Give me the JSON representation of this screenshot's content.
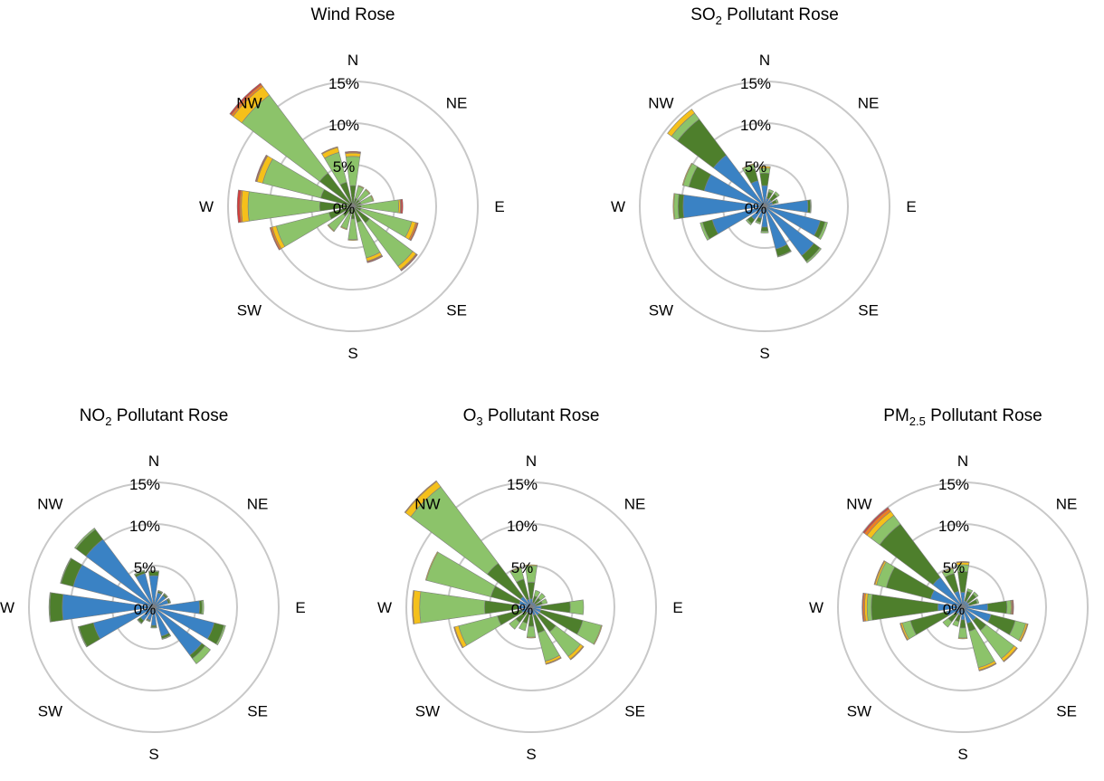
{
  "colors": {
    "ring": "#c8c8c8",
    "blue": "#3a82c4",
    "darkgreen": "#4e7f2c",
    "lightgreen": "#8cc36a",
    "yellow": "#f5c01a",
    "orange": "#ee7d24",
    "red": "#d43d3a",
    "border": "#7f7f7f"
  },
  "chart_data": [
    {
      "type": "polar-stacked-bar",
      "title": "Wind Rose",
      "title_main": "Wind Rose",
      "title_sub": "",
      "title_tail": "",
      "ring_labels": [
        "0%",
        "5%",
        "10%",
        "15%"
      ],
      "rmax": 15,
      "directions": [
        "N",
        "NE",
        "E",
        "SE",
        "S",
        "SW",
        "W",
        "NW"
      ],
      "sectors": 16,
      "series": [
        {
          "color": "#4e7f2c",
          "values": [
            2.5,
            1,
            1,
            1,
            1,
            1,
            2.5,
            2,
            1.5,
            1,
            1.5,
            3,
            4,
            4,
            5,
            3
          ]
        },
        {
          "color": "#8cc36a",
          "values": [
            3.5,
            1.5,
            1.5,
            1.5,
            4.5,
            6.3,
            6.5,
            4.4,
            2.5,
            1.8,
            2.2,
            6.5,
            8.6,
            7.2,
            11.7,
            3.7
          ]
        },
        {
          "color": "#f5c01a",
          "values": [
            0.4,
            0.1,
            0.1,
            0.1,
            0.2,
            0.5,
            0.5,
            0.4,
            0.1,
            0.1,
            0.1,
            0.5,
            0.8,
            0.7,
            1.3,
            0.6
          ]
        },
        {
          "color": "#ee7d24",
          "values": [
            0.1,
            0,
            0,
            0,
            0.1,
            0.2,
            0.1,
            0.1,
            0,
            0,
            0,
            0.2,
            0.2,
            0.1,
            0.3,
            0.1
          ]
        },
        {
          "color": "#d43d3a",
          "values": [
            0.1,
            0,
            0,
            0,
            0.2,
            0.1,
            0.1,
            0.1,
            0,
            0,
            0,
            0.1,
            0.3,
            0.1,
            0.2,
            0
          ]
        }
      ]
    },
    {
      "type": "polar-stacked-bar",
      "title": "SO2 Pollutant Rose",
      "title_main": "SO",
      "title_sub": "2",
      "title_tail": " Pollutant Rose",
      "ring_labels": [
        "0%",
        "5%",
        "10%",
        "15%"
      ],
      "rmax": 15,
      "directions": [
        "N",
        "NE",
        "E",
        "SE",
        "S",
        "SW",
        "W",
        "NW"
      ],
      "sectors": 16,
      "series": [
        {
          "color": "#3a82c4",
          "values": [
            2.5,
            1,
            1,
            1,
            5.2,
            6.9,
            7.4,
            5.3,
            2.5,
            1.5,
            2,
            6.5,
            9.8,
            7.5,
            7.7,
            3.2
          ]
        },
        {
          "color": "#4e7f2c",
          "values": [
            1.5,
            0.8,
            0.9,
            0.5,
            0.3,
            0.6,
            0.9,
            0.9,
            0.5,
            0.5,
            0.6,
            1.2,
            0.6,
            1.9,
            5.4,
            1.5
          ]
        },
        {
          "color": "#8cc36a",
          "values": [
            0.6,
            0.3,
            0.3,
            0.2,
            0.1,
            0.3,
            0.2,
            0.1,
            0.2,
            0.2,
            0.2,
            0.3,
            0.5,
            0.7,
            0.9,
            0.5
          ]
        },
        {
          "color": "#f5c01a",
          "values": [
            0.2,
            0,
            0,
            0,
            0,
            0,
            0,
            0,
            0,
            0,
            0,
            0,
            0.1,
            0.1,
            0.6,
            0.1
          ]
        }
      ]
    },
    {
      "type": "polar-stacked-bar",
      "title": "NO2 Pollutant Rose",
      "title_main": "NO",
      "title_sub": "2",
      "title_tail": " Pollutant Rose",
      "ring_labels": [
        "0%",
        "5%",
        "10%",
        "15%"
      ],
      "rmax": 15,
      "directions": [
        "N",
        "NE",
        "E",
        "SE",
        "S",
        "SW",
        "W",
        "NW"
      ],
      "sectors": 16,
      "series": [
        {
          "color": "#3a82c4",
          "values": [
            3.8,
            1.8,
            1.8,
            1.8,
            5.5,
            7.5,
            7.2,
            3.6,
            2.2,
            1.6,
            2,
            7.5,
            11,
            10,
            10.2,
            4.2
          ]
        },
        {
          "color": "#4e7f2c",
          "values": [
            0.5,
            0.2,
            0.2,
            0.2,
            0.3,
            1.2,
            0.5,
            0.3,
            0.2,
            0.1,
            0.4,
            1.8,
            1.5,
            1.5,
            1.5,
            0.3
          ]
        },
        {
          "color": "#8cc36a",
          "values": [
            0.1,
            0.1,
            0.1,
            0.1,
            0.2,
            0.2,
            0.8,
            0.1,
            0.1,
            0.1,
            0.1,
            0.1,
            0.1,
            0.1,
            0.2,
            0.1
          ]
        }
      ]
    },
    {
      "type": "polar-stacked-bar",
      "title": "O3 Pollutant Rose",
      "title_main": "O",
      "title_sub": "3",
      "title_tail": " Pollutant Rose",
      "ring_labels": [
        "0%",
        "5%",
        "10%",
        "15%"
      ],
      "rmax": 15,
      "directions": [
        "N",
        "NE",
        "E",
        "SE",
        "S",
        "SW",
        "W",
        "NW"
      ],
      "sectors": 16,
      "series": [
        {
          "color": "#3a82c4",
          "values": [
            1,
            0.6,
            0.6,
            0.6,
            1.2,
            1.2,
            1.2,
            1,
            0.8,
            0.8,
            0.8,
            1.2,
            1.6,
            1.5,
            1.6,
            1
          ]
        },
        {
          "color": "#4e7f2c",
          "values": [
            2,
            0.8,
            0.8,
            0.8,
            3.5,
            5.2,
            2.5,
            2.2,
            1.5,
            1.2,
            1.5,
            3,
            4,
            3.5,
            5,
            2.5
          ]
        },
        {
          "color": "#8cc36a",
          "values": [
            2,
            0.7,
            0.7,
            0.6,
            1.6,
            2.3,
            3.7,
            3.5,
            1.3,
            0.9,
            1,
            4.8,
            7.8,
            8,
            11.5,
            1.4
          ]
        },
        {
          "color": "#f5c01a",
          "values": [
            0.1,
            0,
            0,
            0,
            0,
            0.1,
            0.4,
            0.3,
            0.1,
            0,
            0,
            0.5,
            0.8,
            0.1,
            0.8,
            0.1
          ]
        },
        {
          "color": "#ee7d24",
          "values": [
            0,
            0,
            0,
            0,
            0,
            0,
            0.1,
            0.1,
            0,
            0,
            0,
            0.1,
            0.1,
            0,
            0.1,
            0
          ]
        }
      ]
    },
    {
      "type": "polar-stacked-bar",
      "title": "PM2.5 Pollutant Rose",
      "title_main": "PM",
      "title_sub": "2.5",
      "title_tail": " Pollutant Rose",
      "ring_labels": [
        "0%",
        "5%",
        "10%",
        "15%"
      ],
      "rmax": 15,
      "directions": [
        "N",
        "NE",
        "E",
        "SE",
        "S",
        "SW",
        "W",
        "NW"
      ],
      "sectors": 16,
      "series": [
        {
          "color": "#3a82c4",
          "values": [
            1.8,
            0.8,
            0.8,
            0.8,
            3,
            3.5,
            2,
            2,
            1.5,
            1,
            1,
            2,
            3,
            4,
            4.5,
            2
          ]
        },
        {
          "color": "#4e7f2c",
          "values": [
            2.5,
            1.2,
            1.2,
            1,
            2.3,
            3,
            1.5,
            1,
            1,
            0.8,
            1.2,
            4.5,
            8,
            5.5,
            8,
            2.2
          ]
        },
        {
          "color": "#8cc36a",
          "values": [
            0.8,
            0.3,
            0.3,
            0.2,
            0.5,
            1.3,
            4.2,
            4.5,
            1.2,
            0.6,
            0.8,
            1,
            0.5,
            1.2,
            1.3,
            0.6
          ]
        },
        {
          "color": "#f5c01a",
          "values": [
            0.3,
            0,
            0,
            0,
            0.1,
            0.2,
            0.4,
            0.3,
            0.1,
            0,
            0,
            0.2,
            0.3,
            0.2,
            0.6,
            0.1
          ]
        },
        {
          "color": "#ee7d24",
          "values": [
            0.1,
            0,
            0,
            0,
            0.1,
            0.1,
            0.1,
            0.1,
            0,
            0,
            0,
            0.1,
            0.2,
            0.1,
            0.4,
            0
          ]
        },
        {
          "color": "#d43d3a",
          "values": [
            0,
            0,
            0,
            0,
            0.1,
            0,
            0,
            0,
            0,
            0,
            0,
            0,
            0.1,
            0,
            0.2,
            0
          ]
        }
      ]
    }
  ]
}
